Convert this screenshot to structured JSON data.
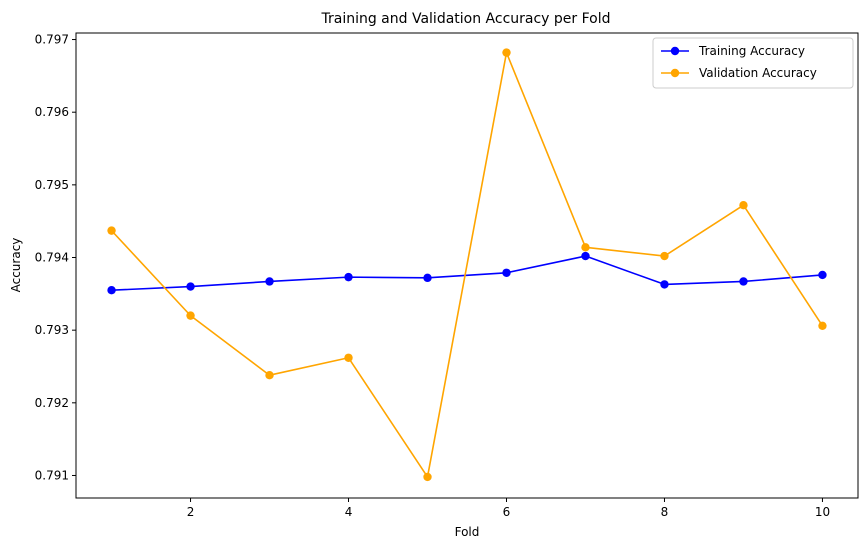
{
  "chart_data": {
    "type": "line",
    "title": "Training and Validation Accuracy per Fold",
    "xlabel": "Fold",
    "ylabel": "Accuracy",
    "x": [
      1,
      2,
      3,
      4,
      5,
      6,
      7,
      8,
      9,
      10
    ],
    "xlim": [
      0.55,
      10.45
    ],
    "ylim": [
      0.79069,
      0.79709
    ],
    "xticks": [
      2,
      4,
      6,
      8,
      10
    ],
    "xtick_labels": [
      "2",
      "4",
      "6",
      "8",
      "10"
    ],
    "yticks": [
      0.791,
      0.792,
      0.793,
      0.794,
      0.795,
      0.796,
      0.797
    ],
    "ytick_labels": [
      "0.791",
      "0.792",
      "0.793",
      "0.794",
      "0.795",
      "0.796",
      "0.797"
    ],
    "grid": false,
    "legend_position": "top-right",
    "series": [
      {
        "name": "Training Accuracy",
        "color": "#0000ff",
        "marker": "circle",
        "values": [
          0.79355,
          0.7936,
          0.79367,
          0.79373,
          0.79372,
          0.79379,
          0.79402,
          0.79363,
          0.79367,
          0.79376
        ]
      },
      {
        "name": "Validation Accuracy",
        "color": "#ffa500",
        "marker": "circle",
        "values": [
          0.79437,
          0.7932,
          0.79238,
          0.79262,
          0.79098,
          0.79682,
          0.79414,
          0.79402,
          0.79472,
          0.79306
        ]
      }
    ]
  }
}
